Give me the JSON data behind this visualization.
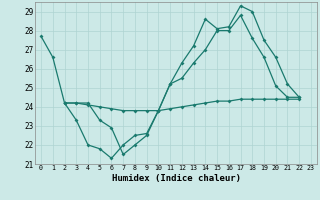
{
  "xlabel": "Humidex (Indice chaleur)",
  "xlim": [
    -0.5,
    23.5
  ],
  "ylim": [
    21,
    29.5
  ],
  "yticks": [
    21,
    22,
    23,
    24,
    25,
    26,
    27,
    28,
    29
  ],
  "xticks": [
    0,
    1,
    2,
    3,
    4,
    5,
    6,
    7,
    8,
    9,
    10,
    11,
    12,
    13,
    14,
    15,
    16,
    17,
    18,
    19,
    20,
    21,
    22,
    23
  ],
  "bg_color": "#cce9e7",
  "grid_color": "#afd4d2",
  "line_color": "#1a7a6e",
  "line1_x": [
    0,
    1,
    2,
    3,
    4,
    5,
    6,
    7,
    8,
    9,
    10,
    11,
    12,
    13,
    14,
    15,
    16,
    17,
    18,
    19,
    20,
    21,
    22
  ],
  "line1_y": [
    27.7,
    26.6,
    24.2,
    23.3,
    22.0,
    21.8,
    21.3,
    22.0,
    22.5,
    22.6,
    23.8,
    25.2,
    26.3,
    27.2,
    28.6,
    28.1,
    28.2,
    29.3,
    29.0,
    27.5,
    26.6,
    25.2,
    24.5
  ],
  "line2_x": [
    2,
    3,
    4,
    5,
    6,
    7,
    8,
    9,
    10,
    11,
    12,
    13,
    14,
    15,
    16,
    17,
    18,
    19,
    20,
    21,
    22
  ],
  "line2_y": [
    24.2,
    24.2,
    24.2,
    23.3,
    22.9,
    21.5,
    22.0,
    22.5,
    23.8,
    25.2,
    25.5,
    26.3,
    27.0,
    28.0,
    28.0,
    28.8,
    27.6,
    26.6,
    25.1,
    24.5,
    24.5
  ],
  "line3_x": [
    2,
    3,
    4,
    5,
    6,
    7,
    8,
    9,
    10,
    11,
    12,
    13,
    14,
    15,
    16,
    17,
    18,
    19,
    20,
    21,
    22
  ],
  "line3_y": [
    24.2,
    24.2,
    24.1,
    24.0,
    23.9,
    23.8,
    23.8,
    23.8,
    23.8,
    23.9,
    24.0,
    24.1,
    24.2,
    24.3,
    24.3,
    24.4,
    24.4,
    24.4,
    24.4,
    24.4,
    24.4
  ]
}
